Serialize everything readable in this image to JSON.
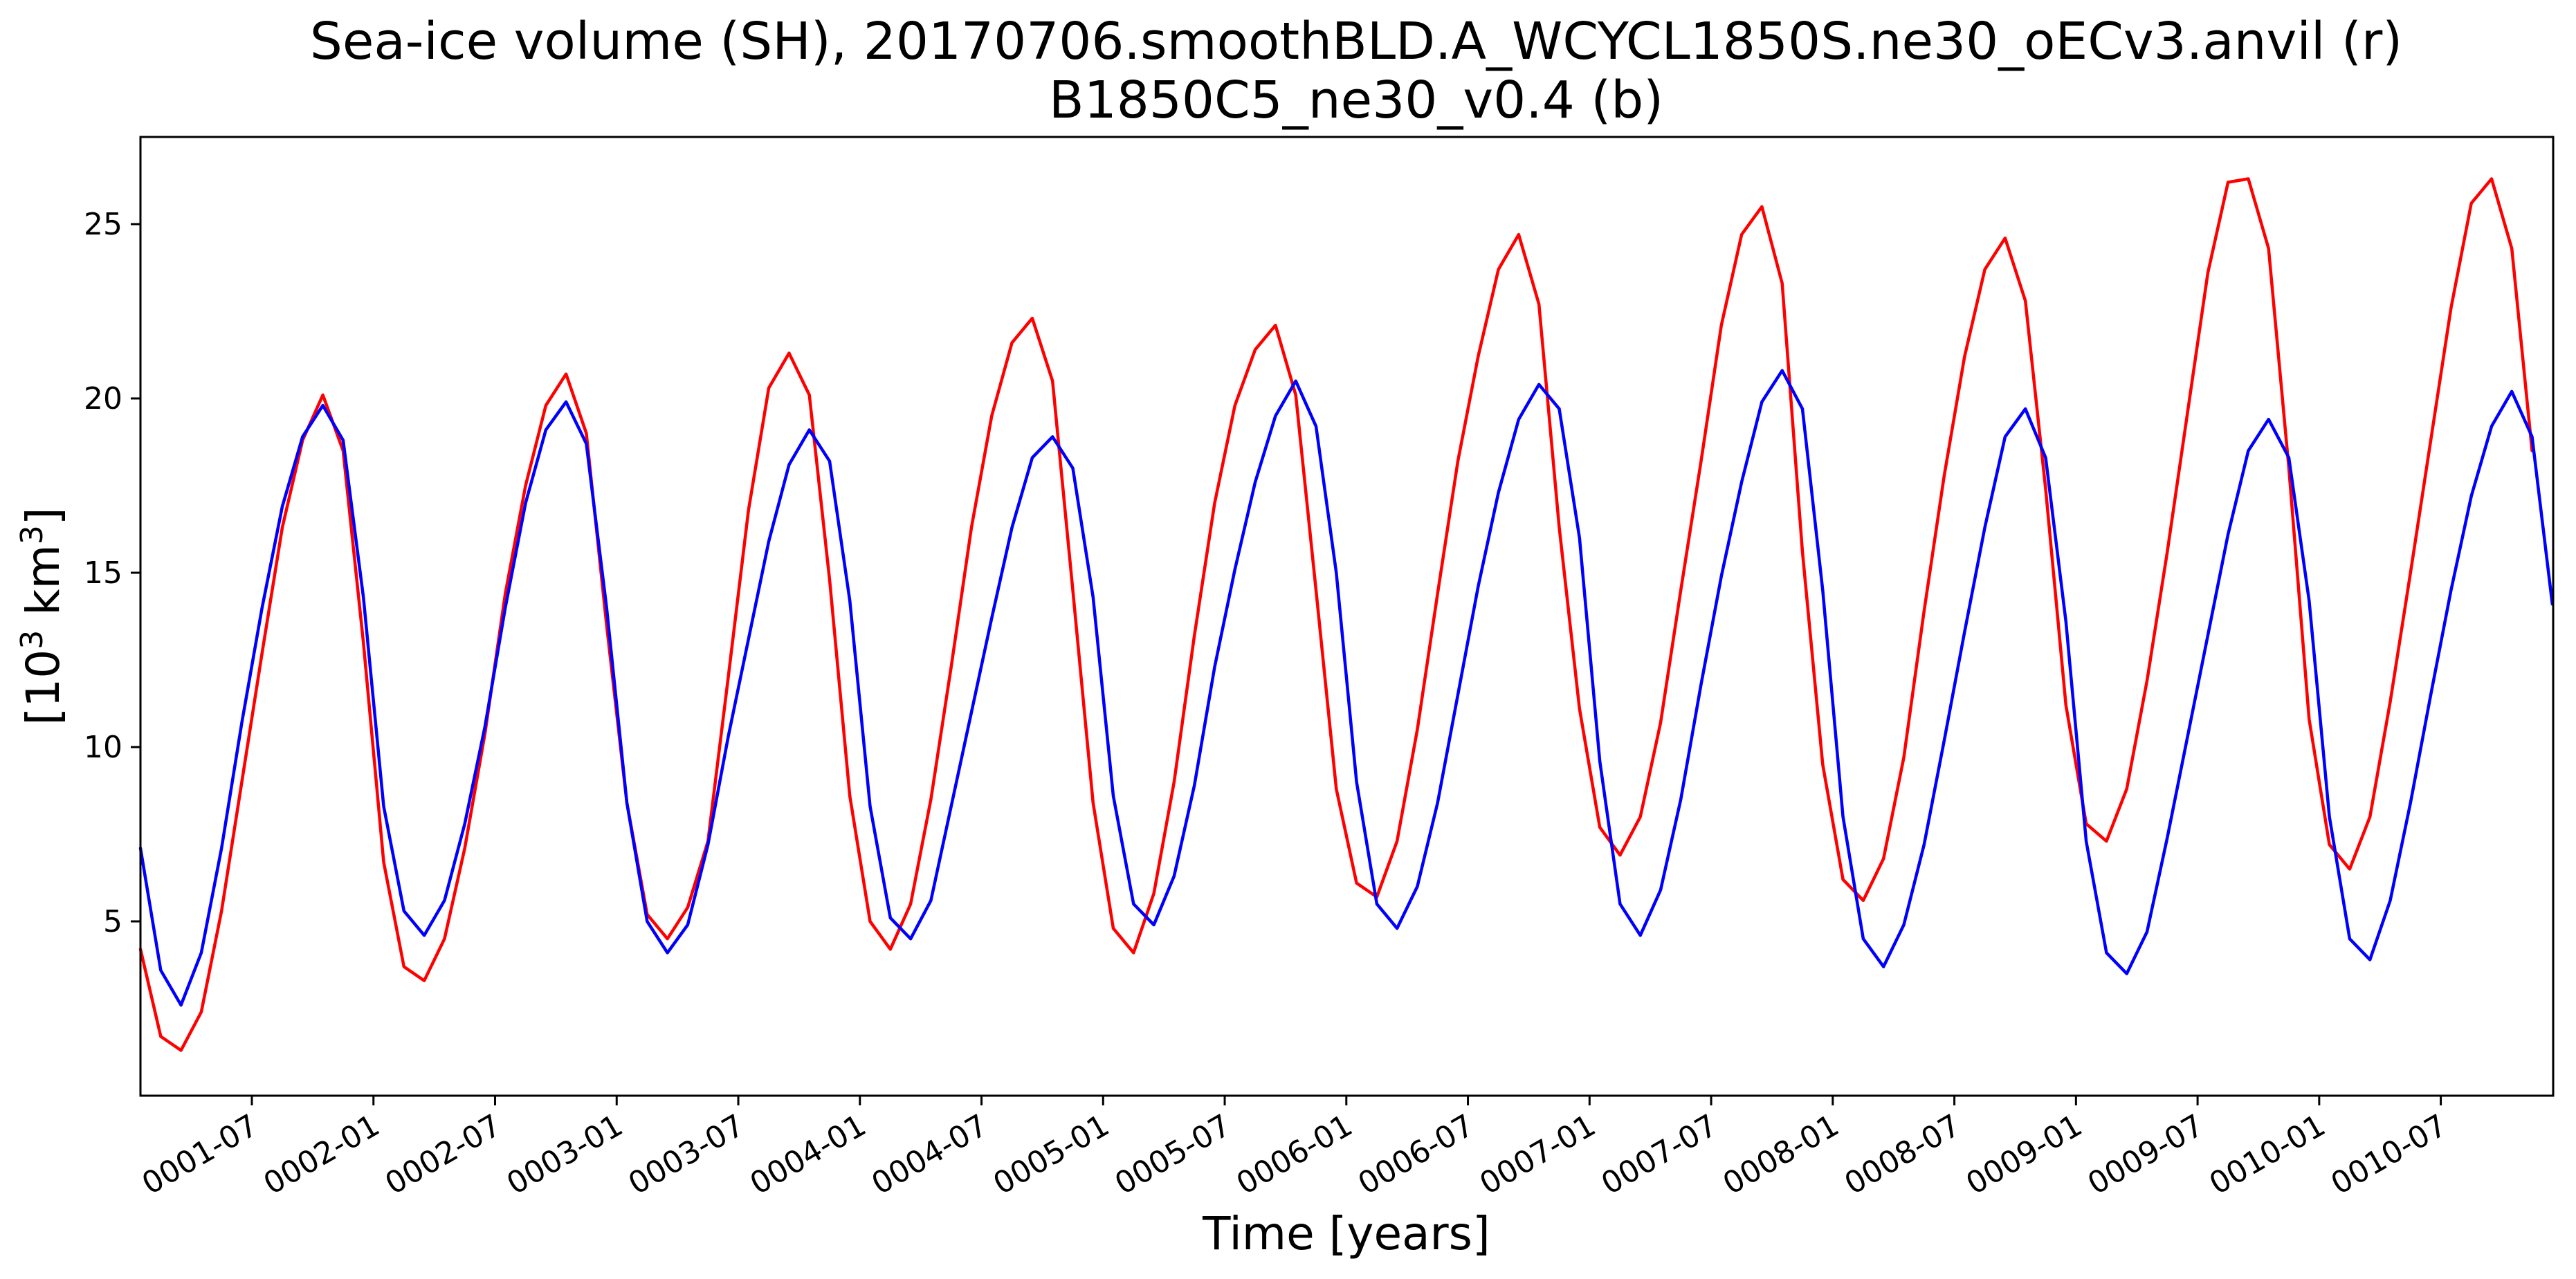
{
  "chart_data": {
    "type": "line",
    "title_line1": "Sea-ice volume (SH), 20170706.smoothBLD.A_WCYCL1850S.ne30_oECv3.anvil (r)",
    "title_line2": "B1850C5_ne30_v0.4 (b)",
    "xlabel": "Time [years]",
    "ylabel_base": "[10",
    "ylabel_exp": "3",
    "ylabel_mid": " km",
    "ylabel_exp2": "3",
    "ylabel_end": "]",
    "xlim": [
      0.0,
      9.92
    ],
    "ylim": [
      0.0,
      27.5
    ],
    "y_ticks": [
      5,
      10,
      15,
      20,
      25
    ],
    "x_ticks": [
      {
        "label": "0001-07",
        "value": 0.458
      },
      {
        "label": "0002-01",
        "value": 0.958
      },
      {
        "label": "0002-07",
        "value": 1.458
      },
      {
        "label": "0003-01",
        "value": 1.958
      },
      {
        "label": "0003-07",
        "value": 2.458
      },
      {
        "label": "0004-01",
        "value": 2.958
      },
      {
        "label": "0004-07",
        "value": 3.458
      },
      {
        "label": "0005-01",
        "value": 3.958
      },
      {
        "label": "0005-07",
        "value": 4.458
      },
      {
        "label": "0006-01",
        "value": 4.958
      },
      {
        "label": "0006-07",
        "value": 5.458
      },
      {
        "label": "0007-01",
        "value": 5.958
      },
      {
        "label": "0007-07",
        "value": 6.458
      },
      {
        "label": "0008-01",
        "value": 6.958
      },
      {
        "label": "0008-07",
        "value": 7.458
      },
      {
        "label": "0009-01",
        "value": 7.958
      },
      {
        "label": "0009-07",
        "value": 8.458
      },
      {
        "label": "0010-01",
        "value": 8.958
      },
      {
        "label": "0010-07",
        "value": 9.458
      }
    ],
    "series": [
      {
        "name": "20170706.smoothBLD.A_WCYCL1850S.ne30_oECv3.anvil",
        "color": "#ff0000",
        "values": [
          4.2,
          1.7,
          1.3,
          2.4,
          5.3,
          9.0,
          12.7,
          16.3,
          18.8,
          20.1,
          18.5,
          13.0,
          6.7,
          3.7,
          3.3,
          4.5,
          7.1,
          10.4,
          14.4,
          17.5,
          19.8,
          20.7,
          19.0,
          13.5,
          8.4,
          5.2,
          4.5,
          5.4,
          7.3,
          12.0,
          16.8,
          20.3,
          21.3,
          20.1,
          14.8,
          8.6,
          5.0,
          4.2,
          5.5,
          8.5,
          12.3,
          16.3,
          19.5,
          21.6,
          22.3,
          20.5,
          14.5,
          8.4,
          4.8,
          4.1,
          5.8,
          9.0,
          13.2,
          17.0,
          19.8,
          21.4,
          22.1,
          20.1,
          14.5,
          8.8,
          6.1,
          5.7,
          7.3,
          10.5,
          14.4,
          18.2,
          21.2,
          23.7,
          24.7,
          22.7,
          16.3,
          11.1,
          7.7,
          6.9,
          8.0,
          10.7,
          14.5,
          18.2,
          22.1,
          24.7,
          25.5,
          23.3,
          15.6,
          9.5,
          6.2,
          5.6,
          6.8,
          9.7,
          13.9,
          17.8,
          21.2,
          23.7,
          24.6,
          22.8,
          17.4,
          11.2,
          7.8,
          7.3,
          8.8,
          11.9,
          15.6,
          19.6,
          23.6,
          26.2,
          26.3,
          24.3,
          18.0,
          10.8,
          7.2,
          6.5,
          8.0,
          11.3,
          15.0,
          18.8,
          22.6,
          25.6,
          26.3,
          24.3,
          18.5
        ]
      },
      {
        "name": "B1850C5_ne30_v0.4",
        "color": "#0000ff",
        "values": [
          7.1,
          3.6,
          2.6,
          4.1,
          7.1,
          10.7,
          14.0,
          16.9,
          18.9,
          19.8,
          18.8,
          14.3,
          8.3,
          5.3,
          4.6,
          5.6,
          7.8,
          10.6,
          14.0,
          17.0,
          19.1,
          19.9,
          18.7,
          14.0,
          8.4,
          5.0,
          4.1,
          4.9,
          7.2,
          10.3,
          13.1,
          15.9,
          18.1,
          19.1,
          18.2,
          14.2,
          8.3,
          5.1,
          4.5,
          5.6,
          8.3,
          11.0,
          13.7,
          16.3,
          18.3,
          18.9,
          18.0,
          14.3,
          8.6,
          5.5,
          4.9,
          6.3,
          8.9,
          12.3,
          15.1,
          17.6,
          19.5,
          20.5,
          19.2,
          15.0,
          9.0,
          5.5,
          4.8,
          6.0,
          8.4,
          11.5,
          14.6,
          17.3,
          19.4,
          20.4,
          19.7,
          16.0,
          9.6,
          5.5,
          4.6,
          5.9,
          8.5,
          11.8,
          14.9,
          17.6,
          19.9,
          20.8,
          19.7,
          14.5,
          8.0,
          4.5,
          3.7,
          4.9,
          7.2,
          10.2,
          13.3,
          16.3,
          18.9,
          19.7,
          18.3,
          13.6,
          7.3,
          4.1,
          3.5,
          4.7,
          7.4,
          10.3,
          13.2,
          16.1,
          18.5,
          19.4,
          18.3,
          14.2,
          8.0,
          4.5,
          3.9,
          5.6,
          8.4,
          11.5,
          14.5,
          17.2,
          19.2,
          20.2,
          18.9,
          14.1
        ]
      }
    ]
  }
}
